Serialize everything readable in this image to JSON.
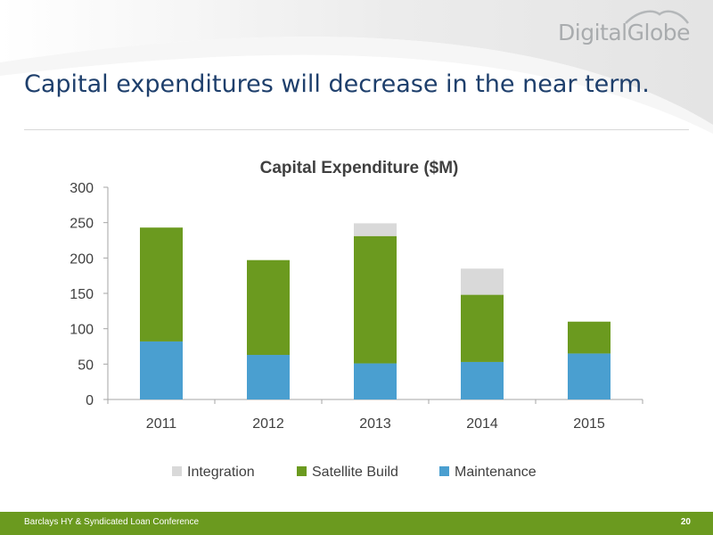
{
  "header": {
    "logo_text": "DigitalGlobe",
    "title": "Capital expenditures will decrease in the near term."
  },
  "footer": {
    "left": "Barclays HY & Syndicated Loan Conference",
    "page_number": "20"
  },
  "colors": {
    "title": "#1e3f6c",
    "integration": "#d9d9d9",
    "satellite_build": "#6b9a1f",
    "maintenance": "#4a9fd0",
    "footer": "#6b9a1f"
  },
  "chart_data": {
    "type": "bar",
    "stacked": true,
    "title": "Capital Expenditure ($M)",
    "xlabel": "",
    "ylabel": "",
    "categories": [
      "2011",
      "2012",
      "2013",
      "2014",
      "2015"
    ],
    "ylim": [
      0,
      300
    ],
    "yticks": [
      0,
      50,
      100,
      150,
      200,
      250,
      300
    ],
    "grid": false,
    "legend_position": "bottom",
    "series": [
      {
        "name": "Maintenance",
        "color": "#4a9fd0",
        "values": [
          82,
          63,
          51,
          53,
          65
        ]
      },
      {
        "name": "Satellite Build",
        "color": "#6b9a1f",
        "values": [
          161,
          134,
          180,
          95,
          45
        ]
      },
      {
        "name": "Integration",
        "color": "#d9d9d9",
        "values": [
          0,
          0,
          18,
          37,
          0
        ]
      }
    ],
    "legend_order": [
      "Integration",
      "Satellite Build",
      "Maintenance"
    ]
  }
}
